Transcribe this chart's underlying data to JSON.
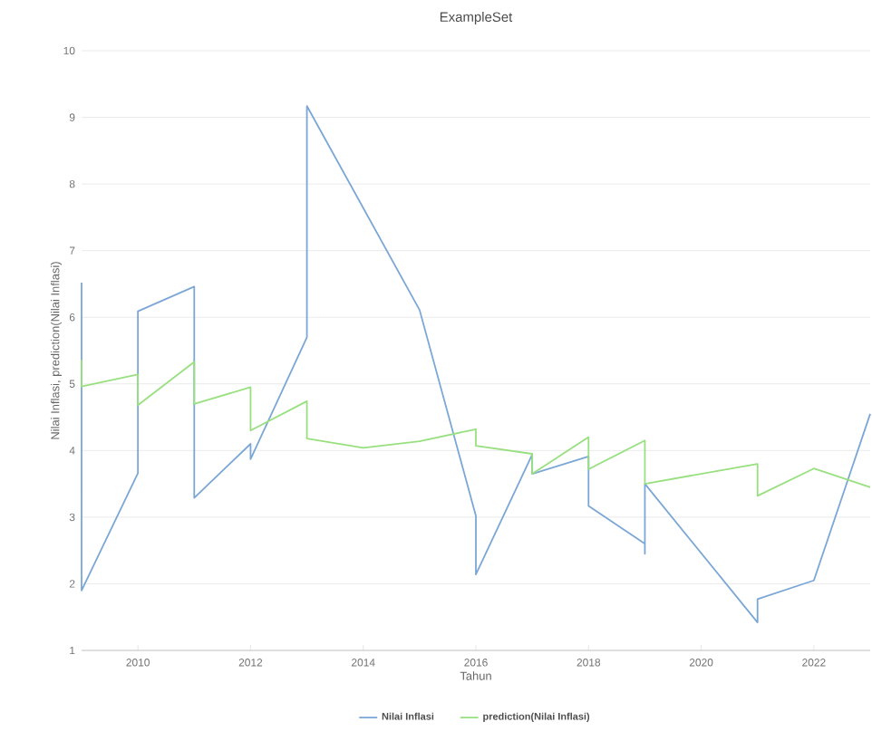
{
  "chart_data": {
    "type": "line",
    "title": "ExampleSet",
    "xlabel": "Tahun",
    "ylabel": "Nilai Inflasi, prediction(Nilai Inflasi)",
    "xlim": [
      2009,
      2023
    ],
    "xticks": [
      2010,
      2012,
      2014,
      2016,
      2018,
      2020,
      2022
    ],
    "ylim": [
      1,
      10
    ],
    "yticks": [
      1,
      2,
      3,
      4,
      5,
      6,
      7,
      8,
      9,
      10
    ],
    "grid": "y",
    "legend": "bottom",
    "marker": "none",
    "line_style": "solid",
    "series": [
      {
        "name": "Nilai Inflasi",
        "color": "#7ba7d6",
        "x": [
          2009,
          2009,
          2010,
          2010,
          2011,
          2011,
          2012,
          2012,
          2013,
          2013,
          2015,
          2016,
          2016,
          2017,
          2017,
          2018,
          2018,
          2019,
          2019,
          2019,
          2021,
          2021,
          2022,
          2023
        ],
        "values": [
          6.52,
          1.9,
          3.66,
          6.09,
          6.46,
          3.29,
          4.1,
          3.87,
          5.7,
          9.17,
          6.11,
          3.02,
          2.14,
          3.94,
          3.65,
          3.91,
          3.17,
          2.6,
          2.45,
          3.5,
          1.42,
          1.77,
          2.05,
          4.55
        ]
      },
      {
        "name": "prediction(Nilai Inflasi)",
        "color": "#98e07f",
        "x": [
          2009,
          2009,
          2010,
          2010,
          2011,
          2011,
          2012,
          2012,
          2013,
          2013,
          2014,
          2015,
          2016,
          2016,
          2017,
          2017,
          2018,
          2018,
          2019,
          2019,
          2021,
          2021,
          2022,
          2023
        ],
        "values": [
          5.36,
          4.96,
          5.14,
          4.68,
          5.33,
          4.7,
          4.95,
          4.3,
          4.74,
          4.18,
          4.04,
          4.14,
          4.32,
          4.07,
          3.95,
          3.65,
          4.2,
          3.72,
          4.15,
          3.5,
          3.8,
          3.32,
          3.73,
          3.45
        ]
      }
    ]
  }
}
